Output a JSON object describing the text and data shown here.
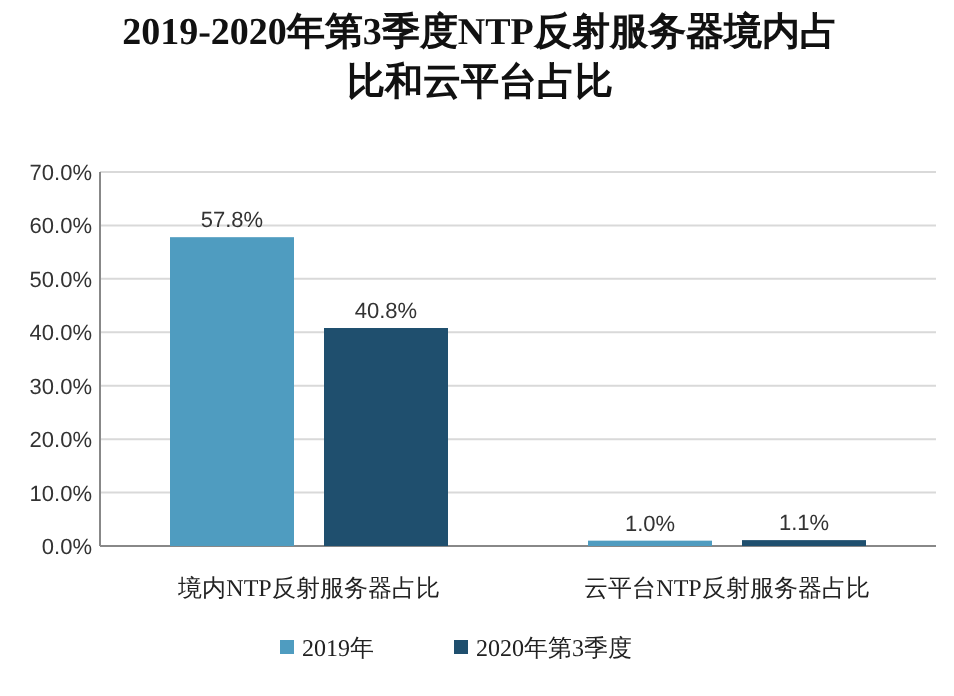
{
  "chart_data": {
    "type": "bar",
    "title": "2019-2020年第3季度NTP反射服务器境内占比和云平台占比",
    "categories": [
      "境内NTP反射服务器占比",
      "云平台NTP反射服务器占比"
    ],
    "series": [
      {
        "name": "2019年",
        "color": "#4f9cc0",
        "values": [
          57.8,
          1.0
        ],
        "value_labels": [
          "57.8%",
          "1.0%"
        ]
      },
      {
        "name": "2020年第3季度",
        "color": "#1f4f6e",
        "values": [
          40.8,
          1.1
        ],
        "value_labels": [
          "40.8%",
          "1.1%"
        ]
      }
    ],
    "ylim": [
      0,
      70
    ],
    "yticks": [
      {
        "value": 0,
        "label": "0.0%"
      },
      {
        "value": 10,
        "label": "10.0%"
      },
      {
        "value": 20,
        "label": "20.0%"
      },
      {
        "value": 30,
        "label": "30.0%"
      },
      {
        "value": 40,
        "label": "40.0%"
      },
      {
        "value": 50,
        "label": "50.0%"
      },
      {
        "value": 60,
        "label": "60.0%"
      },
      {
        "value": 70,
        "label": "70.0%"
      }
    ],
    "grid": "y",
    "legend": "bottom"
  }
}
